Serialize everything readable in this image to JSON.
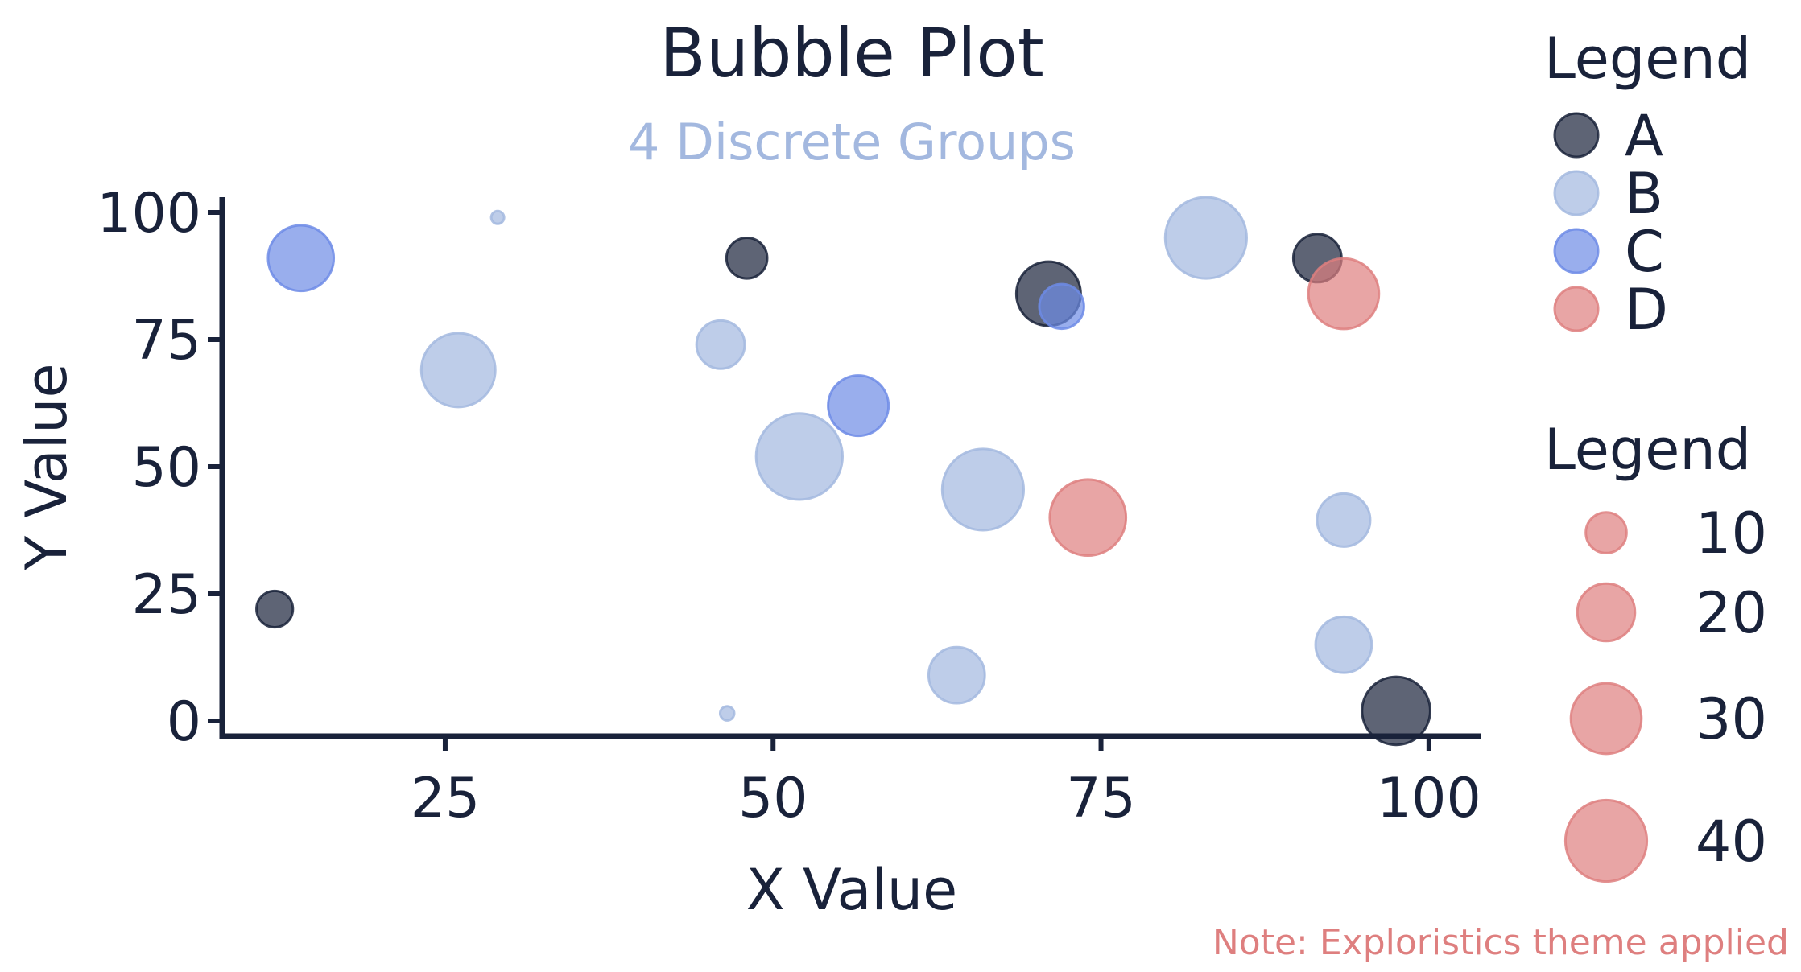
{
  "chart_data": {
    "type": "scatter",
    "title": "Bubble Plot",
    "subtitle": "4 Discrete Groups",
    "xlabel": "X Value",
    "ylabel": "Y Value",
    "xlim": [
      8,
      104
    ],
    "ylim": [
      -3,
      103
    ],
    "xticks": [
      25,
      50,
      75,
      100
    ],
    "yticks": [
      0,
      25,
      50,
      75,
      100
    ],
    "grid": false,
    "legend_placement": "right",
    "note": "Note: Exploristics theme applied",
    "colors": {
      "A": "#19223a",
      "B": "#a3b8df",
      "C": "#6d8be6",
      "D": "#de7f7f"
    },
    "opacity": 0.7,
    "group_legend": {
      "title": "Legend",
      "entries": [
        "A",
        "B",
        "C",
        "D"
      ]
    },
    "size_legend": {
      "title": "Legend",
      "entries": [
        10,
        20,
        30,
        40
      ]
    },
    "series": [
      {
        "name": "A",
        "points": [
          {
            "x": 12,
            "y": 22,
            "size": 8
          },
          {
            "x": 48,
            "y": 91,
            "size": 10
          },
          {
            "x": 71,
            "y": 84,
            "size": 25
          },
          {
            "x": 91.5,
            "y": 91,
            "size": 14
          },
          {
            "x": 97.5,
            "y": 2,
            "size": 28
          }
        ]
      },
      {
        "name": "B",
        "points": [
          {
            "x": 29,
            "y": 99,
            "size": 1
          },
          {
            "x": 26,
            "y": 69,
            "size": 33
          },
          {
            "x": 46,
            "y": 74,
            "size": 14
          },
          {
            "x": 46.5,
            "y": 1.5,
            "size": 1.2
          },
          {
            "x": 52,
            "y": 52,
            "size": 45
          },
          {
            "x": 64,
            "y": 9,
            "size": 19
          },
          {
            "x": 66,
            "y": 45.5,
            "size": 40
          },
          {
            "x": 83,
            "y": 95,
            "size": 40
          },
          {
            "x": 93.5,
            "y": 39.5,
            "size": 17
          },
          {
            "x": 93.5,
            "y": 15,
            "size": 19
          }
        ]
      },
      {
        "name": "C",
        "points": [
          {
            "x": 14,
            "y": 91,
            "size": 26
          },
          {
            "x": 56.5,
            "y": 62,
            "size": 22
          },
          {
            "x": 72,
            "y": 81.5,
            "size": 12
          }
        ]
      },
      {
        "name": "D",
        "points": [
          {
            "x": 74,
            "y": 40,
            "size": 35
          },
          {
            "x": 93.5,
            "y": 84,
            "size": 30
          }
        ]
      }
    ]
  }
}
